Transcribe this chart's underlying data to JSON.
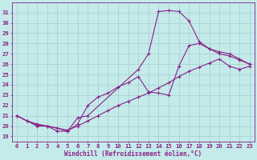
{
  "xlabel": "Windchill (Refroidissement éolien,°C)",
  "xlim": [
    -0.5,
    23.5
  ],
  "ylim": [
    18.5,
    32
  ],
  "xticks": [
    0,
    1,
    2,
    3,
    4,
    5,
    6,
    7,
    8,
    9,
    10,
    11,
    12,
    13,
    14,
    15,
    16,
    17,
    18,
    19,
    20,
    21,
    22,
    23
  ],
  "yticks": [
    19,
    20,
    21,
    22,
    23,
    24,
    25,
    26,
    27,
    28,
    29,
    30,
    31
  ],
  "background_color": "#c5eaea",
  "grid_color": "#a8d4d4",
  "line_color": "#882288",
  "line1_x": [
    0,
    1,
    2,
    3,
    4,
    5,
    6,
    7,
    12,
    13,
    14,
    15,
    16,
    17,
    18,
    19,
    20,
    21,
    22,
    23
  ],
  "line1_y": [
    21.0,
    20.5,
    20.0,
    20.0,
    19.5,
    19.5,
    20.8,
    21.0,
    25.5,
    27.0,
    31.1,
    31.2,
    31.1,
    30.2,
    28.2,
    27.5,
    27.2,
    27.0,
    26.5,
    26.0
  ],
  "line2_x": [
    0,
    1,
    2,
    3,
    4,
    5,
    6,
    7,
    8,
    9,
    10,
    11,
    12,
    13,
    14,
    15,
    16,
    17,
    18,
    19,
    20,
    21,
    22,
    23
  ],
  "line2_y": [
    21.0,
    20.5,
    20.1,
    20.0,
    19.8,
    19.5,
    20.2,
    22.0,
    22.8,
    23.2,
    23.8,
    24.2,
    24.8,
    23.3,
    23.2,
    23.0,
    25.8,
    27.8,
    28.0,
    27.5,
    27.0,
    26.8,
    26.4,
    26.0
  ],
  "line3_x": [
    0,
    1,
    2,
    3,
    4,
    5,
    6,
    7,
    8,
    9,
    10,
    11,
    12,
    13,
    14,
    15,
    16,
    17,
    18,
    19,
    20,
    21,
    22,
    23
  ],
  "line3_y": [
    21.0,
    20.5,
    20.2,
    20.0,
    19.8,
    19.6,
    20.0,
    20.5,
    21.0,
    21.5,
    22.0,
    22.4,
    22.8,
    23.2,
    23.7,
    24.2,
    24.8,
    25.3,
    25.7,
    26.1,
    26.5,
    25.8,
    25.5,
    25.8
  ]
}
